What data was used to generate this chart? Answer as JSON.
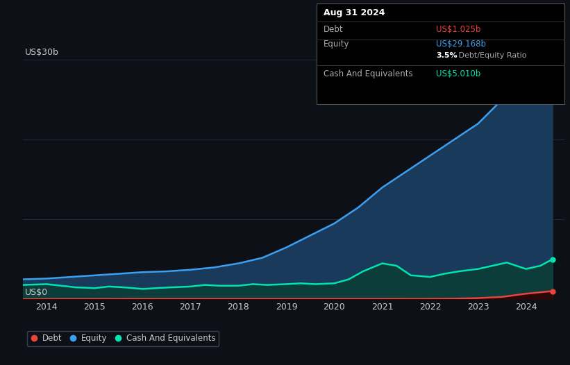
{
  "background_color": "#0d1117",
  "plot_bg_color": "#0d1117",
  "title_box": {
    "date": "Aug 31 2024",
    "debt_label": "Debt",
    "debt_value": "US$1.025b",
    "equity_label": "Equity",
    "equity_value": "US$29.168b",
    "ratio_bold": "3.5%",
    "ratio_normal": " Debt/Equity Ratio",
    "cash_label": "Cash And Equivalents",
    "cash_value": "US$5.010b"
  },
  "ylabel_top": "US$30b",
  "ylabel_bottom": "US$0",
  "equity_color": "#3ca0f0",
  "equity_fill": "#1a3a5c",
  "cash_color": "#00e5b0",
  "cash_fill": "#0d3d3a",
  "debt_color": "#e8443a",
  "debt_fill": "#2a0808",
  "grid_color": "#252b36",
  "text_color": "#cccccc",
  "legend_border_color": "#3a3f4a",
  "equity_x": [
    2013.5,
    2014.0,
    2014.5,
    2015.0,
    2015.5,
    2016.0,
    2016.5,
    2017.0,
    2017.5,
    2018.0,
    2018.5,
    2019.0,
    2019.5,
    2020.0,
    2020.5,
    2021.0,
    2021.5,
    2022.0,
    2022.5,
    2023.0,
    2023.5,
    2024.0,
    2024.55
  ],
  "equity_y": [
    2.5,
    2.6,
    2.8,
    3.0,
    3.2,
    3.4,
    3.5,
    3.7,
    4.0,
    4.5,
    5.2,
    6.5,
    8.0,
    9.5,
    11.5,
    14.0,
    16.0,
    18.0,
    20.0,
    22.0,
    25.0,
    28.5,
    29.168
  ],
  "cash_x": [
    2013.5,
    2014.0,
    2014.3,
    2014.6,
    2015.0,
    2015.3,
    2015.6,
    2016.0,
    2016.3,
    2016.6,
    2017.0,
    2017.3,
    2017.6,
    2018.0,
    2018.3,
    2018.6,
    2019.0,
    2019.3,
    2019.6,
    2020.0,
    2020.3,
    2020.6,
    2021.0,
    2021.3,
    2021.6,
    2022.0,
    2022.3,
    2022.6,
    2023.0,
    2023.3,
    2023.6,
    2024.0,
    2024.3,
    2024.55
  ],
  "cash_y": [
    1.8,
    1.9,
    1.7,
    1.5,
    1.4,
    1.6,
    1.5,
    1.3,
    1.4,
    1.5,
    1.6,
    1.8,
    1.7,
    1.7,
    1.9,
    1.8,
    1.9,
    2.0,
    1.9,
    2.0,
    2.5,
    3.5,
    4.5,
    4.2,
    3.0,
    2.8,
    3.2,
    3.5,
    3.8,
    4.2,
    4.6,
    3.8,
    4.2,
    5.01
  ],
  "debt_x": [
    2013.5,
    2014.0,
    2015.0,
    2016.0,
    2017.0,
    2018.0,
    2019.0,
    2020.0,
    2021.0,
    2022.0,
    2022.5,
    2023.0,
    2023.5,
    2024.0,
    2024.55
  ],
  "debt_y": [
    0.02,
    0.03,
    0.04,
    0.05,
    0.05,
    0.05,
    0.05,
    0.05,
    0.05,
    0.06,
    0.08,
    0.15,
    0.3,
    0.7,
    1.025
  ],
  "ylim": [
    0,
    32
  ],
  "xlim": [
    2013.5,
    2024.8
  ],
  "xticks": [
    2014,
    2015,
    2016,
    2017,
    2018,
    2019,
    2020,
    2021,
    2022,
    2023,
    2024
  ],
  "legend_labels": [
    "Debt",
    "Equity",
    "Cash And Equivalents"
  ],
  "legend_colors": [
    "#e8443a",
    "#3ca0f0",
    "#00e5b0"
  ]
}
